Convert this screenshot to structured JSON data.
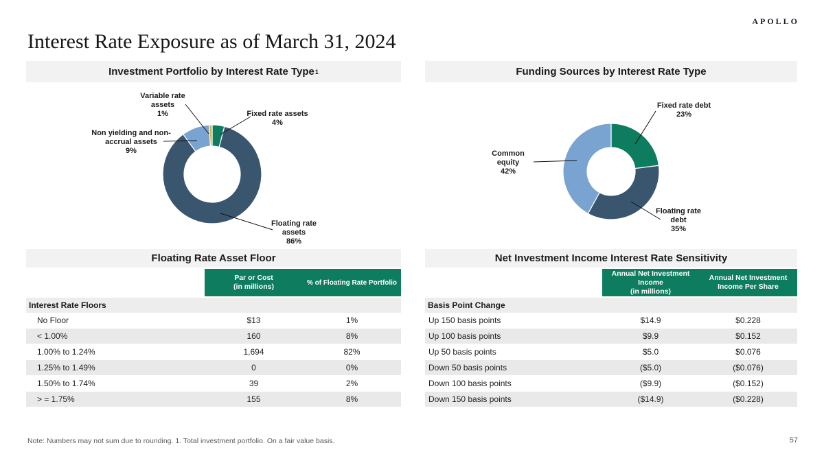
{
  "page": {
    "logo": "APOLLO",
    "title": "Interest Rate Exposure as of March 31, 2024",
    "note": "Note:  Numbers may not sum due to rounding. 1. Total investment portfolio. On a fair value basis.",
    "page_number": "57"
  },
  "colors": {
    "green": "#0E7C5E",
    "dark_blue": "#3A566F",
    "light_blue": "#79A3D1",
    "gold": "#D8B33C",
    "header_bar_gray": "#F2F2F2",
    "alt_row_gray": "#E9E9E9"
  },
  "chart_data": [
    {
      "type": "donut",
      "title": "Investment Portfolio by Interest Rate Type",
      "title_superscript": "1",
      "legend_position": "callout-labels",
      "start_angle_deg": 0,
      "clockwise": true,
      "segments": [
        {
          "label": "Fixed rate assets",
          "value": 4,
          "pct_label": "4%",
          "color": "#0E7C5E"
        },
        {
          "label": "Floating rate assets",
          "value": 86,
          "pct_label": "86%",
          "color": "#3A566F"
        },
        {
          "label": "Non yielding and non-accrual assets",
          "value": 9,
          "pct_label": "9%",
          "color": "#79A3D1"
        },
        {
          "label": "Variable rate assets",
          "value": 1,
          "pct_label": "1%",
          "color": "#D8B33C"
        }
      ]
    },
    {
      "type": "donut",
      "title": "Funding Sources by Interest Rate Type",
      "title_superscript": "",
      "legend_position": "callout-labels",
      "start_angle_deg": 0,
      "clockwise": true,
      "segments": [
        {
          "label": "Fixed rate debt",
          "value": 23,
          "pct_label": "23%",
          "color": "#0E7C5E"
        },
        {
          "label": "Floating rate debt",
          "value": 35,
          "pct_label": "35%",
          "color": "#3A566F"
        },
        {
          "label": "Common equity",
          "value": 42,
          "pct_label": "42%",
          "color": "#79A3D1"
        }
      ]
    }
  ],
  "tables": {
    "left": {
      "title": "Floating Rate Asset Floor",
      "col_headers": [
        {
          "main": "Par or Cost",
          "sub": "(in millions)"
        },
        {
          "main": "% of Floating Rate Portfolio",
          "sub": ""
        }
      ],
      "section_label": "Interest Rate Floors",
      "rows": [
        {
          "label": "No Floor",
          "values": [
            "$13",
            "1%"
          ]
        },
        {
          "label": "< 1.00%",
          "values": [
            "160",
            "8%"
          ]
        },
        {
          "label": "1.00% to 1.24%",
          "values": [
            "1,694",
            "82%"
          ]
        },
        {
          "label": "1.25% to 1.49%",
          "values": [
            "0",
            "0%"
          ]
        },
        {
          "label": "1.50% to 1.74%",
          "values": [
            "39",
            "2%"
          ]
        },
        {
          "label": "> = 1.75%",
          "values": [
            "155",
            "8%"
          ]
        }
      ]
    },
    "right": {
      "title": "Net Investment Income Interest Rate Sensitivity",
      "col_headers": [
        {
          "main": "Annual Net Investment Income",
          "sub": "(in millions)"
        },
        {
          "main": "Annual Net Investment Income Per Share",
          "sub": ""
        }
      ],
      "section_label": "Basis Point Change",
      "rows": [
        {
          "label": "Up 150 basis points",
          "values": [
            "$14.9",
            "$0.228"
          ]
        },
        {
          "label": "Up 100 basis points",
          "values": [
            "$9.9",
            "$0.152"
          ]
        },
        {
          "label": "Up 50 basis points",
          "values": [
            "$5.0",
            "$0.076"
          ]
        },
        {
          "label": "Down 50 basis points",
          "values": [
            "($5.0)",
            "($0.076)"
          ]
        },
        {
          "label": "Down 100 basis points",
          "values": [
            "($9.9)",
            "($0.152)"
          ]
        },
        {
          "label": "Down 150 basis points",
          "values": [
            "($14.9)",
            "($0.228)"
          ]
        }
      ]
    }
  }
}
